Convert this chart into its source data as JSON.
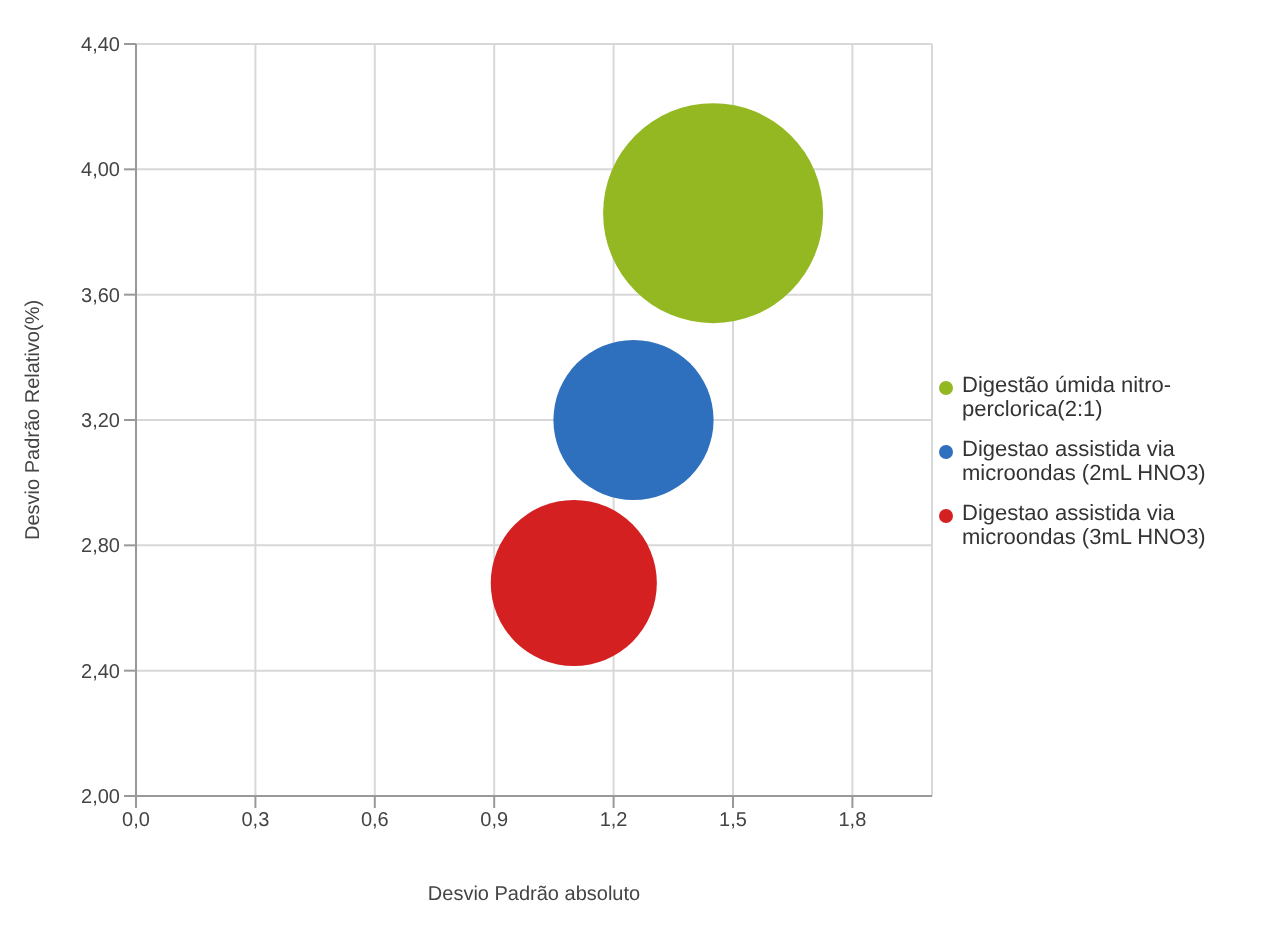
{
  "chart_data": {
    "type": "bubble",
    "xlabel": "Desvio Padrão  absoluto",
    "ylabel": "Desvio Padrão Relativo(%)",
    "series": [
      {
        "name": "Digestão úmida nitro-perclorica(2:1)",
        "color": "#94b821",
        "x": [
          1.45
        ],
        "values": [
          3.86
        ],
        "sizes": [
          1
        ]
      },
      {
        "name": "Digestao assistida via microondas (2mL HNO3)",
        "color": "#2e70be",
        "x": [
          1.25
        ],
        "values": [
          3.2
        ],
        "sizes": [
          0.53
        ]
      },
      {
        "name": "Digestao assistida via microondas (3mL HNO3)",
        "color": "#d42020",
        "x": [
          1.1
        ],
        "values": [
          2.68
        ],
        "sizes": [
          0.57
        ]
      }
    ],
    "xlim": [
      0,
      2.0
    ],
    "xticks": [
      {
        "value": 0,
        "label": "0,0"
      },
      {
        "value": 0.3,
        "label": "0,3"
      },
      {
        "value": 0.6,
        "label": "0,6"
      },
      {
        "value": 0.9,
        "label": "0,9"
      },
      {
        "value": 1.2,
        "label": "1,2"
      },
      {
        "value": 1.5,
        "label": "1,5"
      },
      {
        "value": 1.8,
        "label": "1,8"
      }
    ],
    "ylim": [
      2.0,
      4.4
    ],
    "yticks": [
      {
        "value": 2.0,
        "label": "2,00"
      },
      {
        "value": 2.4,
        "label": "2,40"
      },
      {
        "value": 2.8,
        "label": "2,80"
      },
      {
        "value": 3.2,
        "label": "3,20"
      },
      {
        "value": 3.6,
        "label": "3,60"
      },
      {
        "value": 4.0,
        "label": "4,00"
      },
      {
        "value": 4.4,
        "label": "4,40"
      }
    ],
    "grid": true,
    "legend": "right",
    "marker": "circle"
  }
}
